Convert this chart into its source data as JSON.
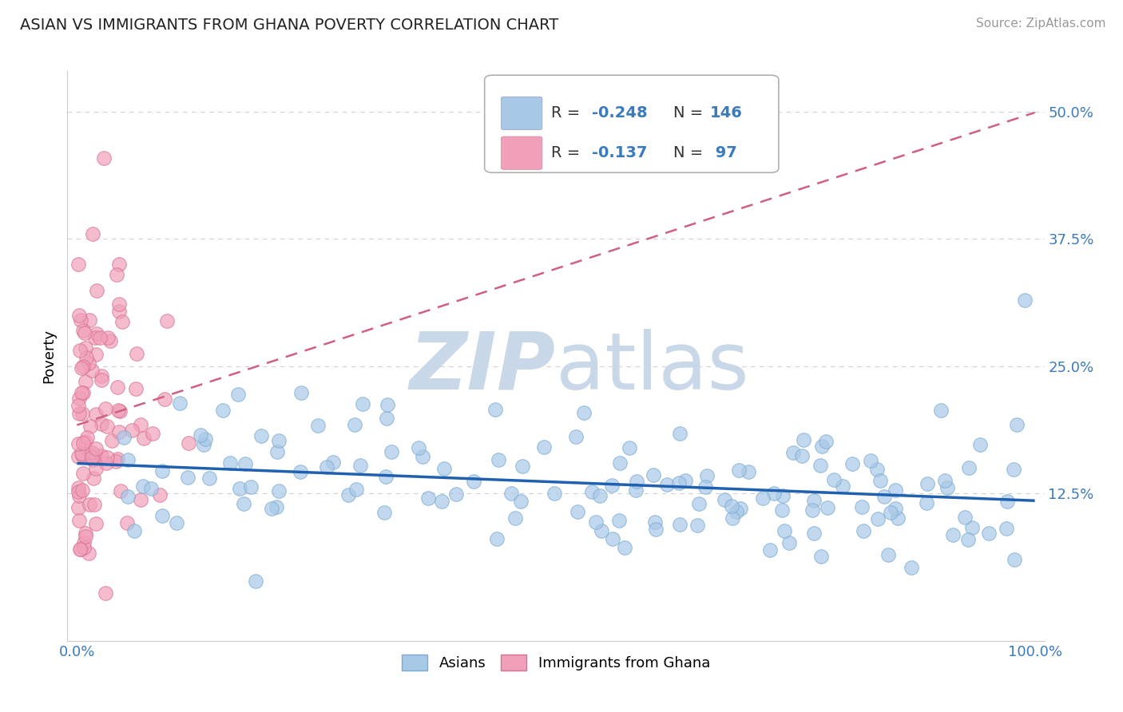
{
  "title": "ASIAN VS IMMIGRANTS FROM GHANA POVERTY CORRELATION CHART",
  "source_text": "Source: ZipAtlas.com",
  "ylabel": "Poverty",
  "xlabel": "",
  "xlim": [
    -0.01,
    1.01
  ],
  "ylim": [
    -0.02,
    0.54
  ],
  "yticks": [
    0.125,
    0.25,
    0.375,
    0.5
  ],
  "ytick_labels": [
    "12.5%",
    "25.0%",
    "37.5%",
    "50.0%"
  ],
  "xticks": [
    0.0,
    1.0
  ],
  "xtick_labels": [
    "0.0%",
    "100.0%"
  ],
  "asian_color": "#a8c8e8",
  "asian_edge_color": "#7aaad0",
  "ghana_color": "#f0a0b8",
  "ghana_edge_color": "#d87090",
  "asian_R": -0.248,
  "asian_N": 146,
  "ghana_R": -0.137,
  "ghana_N": 97,
  "legend_R_color": "#3a7abf",
  "legend_N_color": "#3a7abf",
  "watermark_zip": "ZIP",
  "watermark_atlas": "atlas",
  "watermark_color": "#c8d8e8",
  "background_color": "#ffffff",
  "grid_color": "#d0d0d0",
  "blue_line_color": "#2060b0",
  "pink_line_color": "#d06080"
}
